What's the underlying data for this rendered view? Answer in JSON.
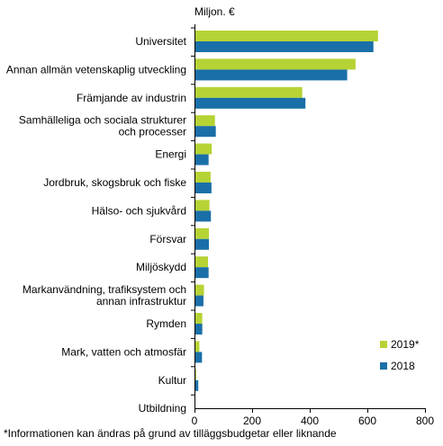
{
  "chart_data": {
    "type": "bar",
    "orientation": "horizontal",
    "unit_label": "Miljon. €",
    "categories": [
      [
        "Universitet"
      ],
      [
        "Annan allmän vetenskaplig utveckling"
      ],
      [
        "Främjande av industrin"
      ],
      [
        "Samhälleliga och sociala strukturer",
        "och processer"
      ],
      [
        "Energi"
      ],
      [
        "Jordbruk, skogsbruk och fiske"
      ],
      [
        "Hälso- och sjukvård"
      ],
      [
        "Försvar"
      ],
      [
        "Miljöskydd"
      ],
      [
        "Markanvändning, trafiksystem och",
        "annan infrastruktur"
      ],
      [
        "Rymden"
      ],
      [
        "Mark, vatten och atmosfär"
      ],
      [
        "Kultur"
      ],
      [
        "Utbildning"
      ]
    ],
    "series": [
      {
        "name": "2019*",
        "color": "#b5d334",
        "values": [
          637,
          559,
          374,
          71,
          60,
          56,
          52,
          50,
          47,
          33,
          27,
          17,
          6,
          0
        ]
      },
      {
        "name": "2018",
        "color": "#1a6fa8",
        "values": [
          621,
          530,
          385,
          74,
          49,
          59,
          57,
          50,
          49,
          31,
          27,
          26,
          13,
          0
        ]
      }
    ],
    "xlim": [
      0,
      800
    ],
    "xticks": [
      0,
      200,
      400,
      600,
      800
    ],
    "grid": false,
    "legend_position": "bottom-right",
    "footnote": "*Informationen kan ändras på grund av tilläggsbudgetar eller liknande"
  }
}
